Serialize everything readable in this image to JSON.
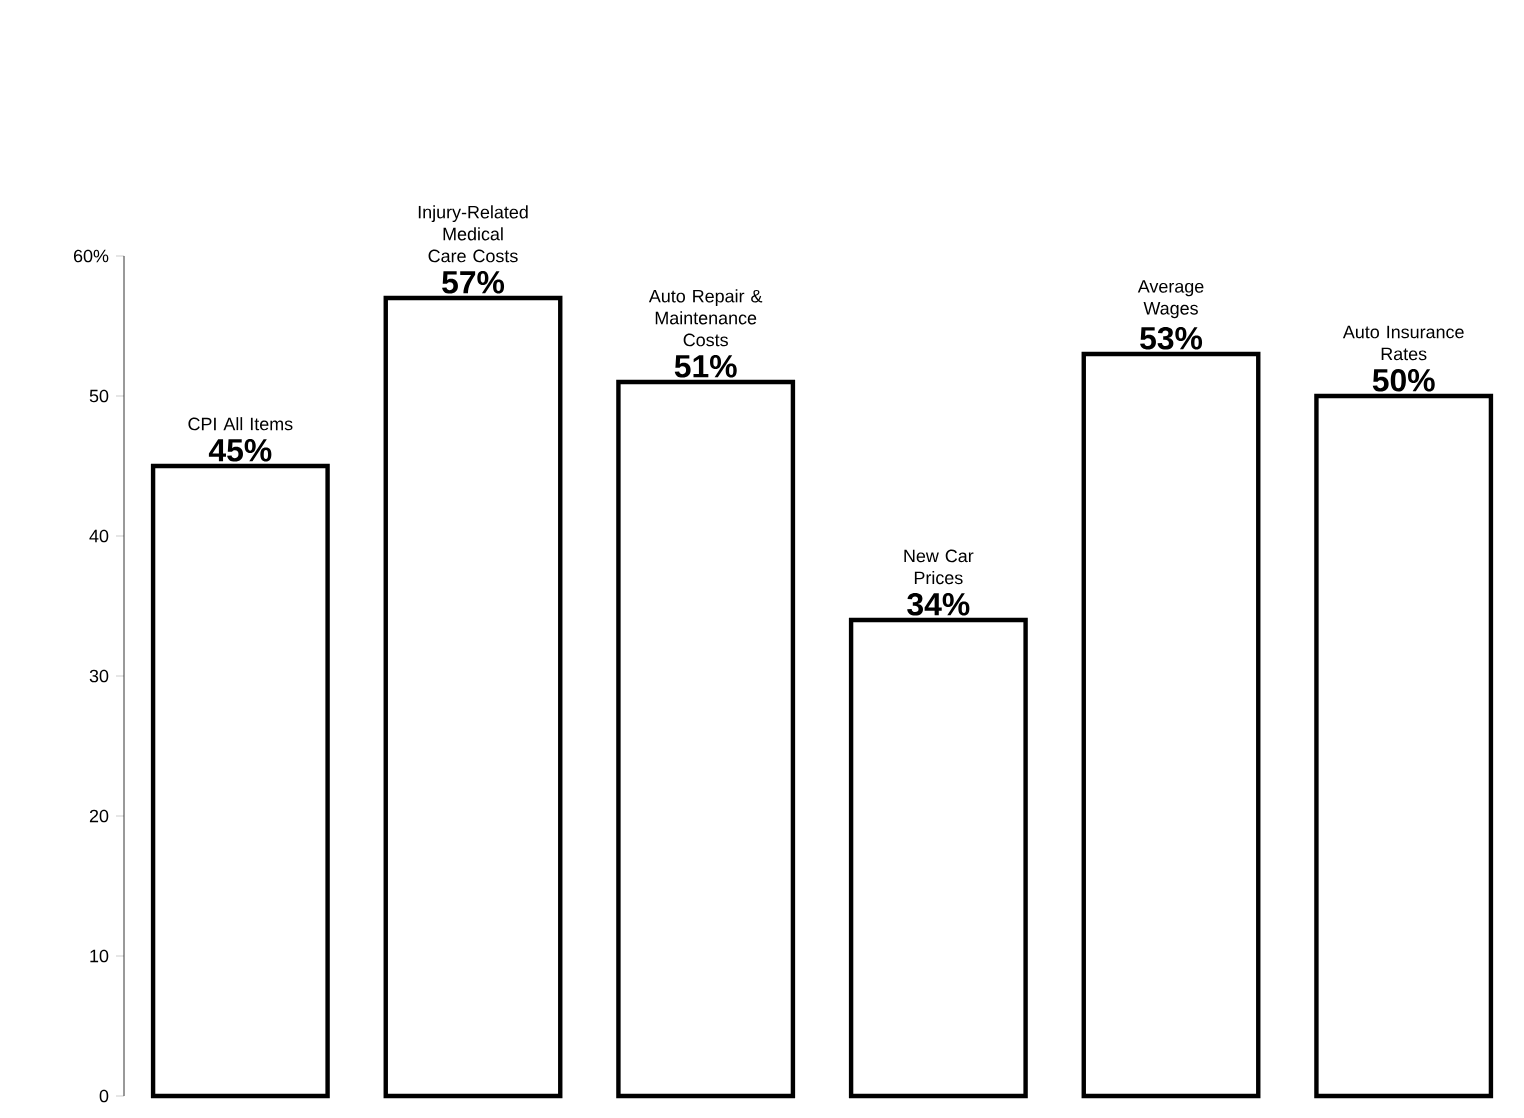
{
  "chart_data": {
    "type": "bar",
    "categories": [
      "CPI All Items",
      "Injury-Related Medical Care Costs",
      "Auto Repair & Maintenance Costs",
      "New Car Prices",
      "Average Wages",
      "Auto Insurance Rates"
    ],
    "values": [
      45,
      57,
      51,
      34,
      53,
      50
    ],
    "value_labels": [
      "45%",
      "57%",
      "51%",
      "34%",
      "53%",
      "50%"
    ],
    "color": "#ffffff",
    "ylim": [
      0,
      60
    ],
    "yticks": [
      0,
      10,
      20,
      30,
      40,
      50,
      {
        "value": 60,
        "label": "60%"
      }
    ]
  }
}
